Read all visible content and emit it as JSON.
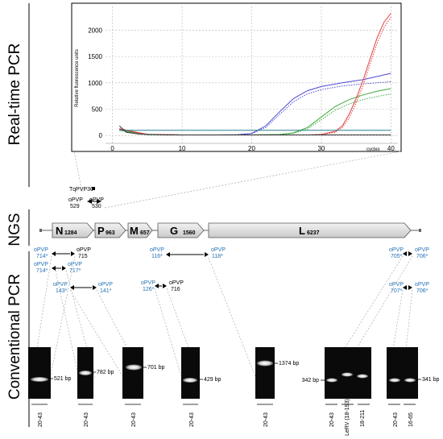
{
  "sections": {
    "realtime": "Real-time PCR",
    "ngs": "NGS",
    "conventional": "Conventional PCR"
  },
  "chart_data": {
    "type": "line",
    "ylabel": "Relative fluorescence units",
    "xlabel": "cycles",
    "x_ticks": [
      0,
      10,
      20,
      30,
      40
    ],
    "y_ticks": [
      0,
      500,
      1000,
      1500,
      2000
    ],
    "xlim": [
      -1,
      41
    ],
    "ylim": [
      -150,
      2450
    ],
    "grid": true,
    "series": [
      {
        "color": "#4a4ad0",
        "style": "solid",
        "x": [
          1,
          5,
          10,
          15,
          18,
          20,
          22,
          24,
          26,
          28,
          30,
          33,
          36,
          40
        ],
        "values": [
          120,
          20,
          10,
          10,
          15,
          40,
          180,
          450,
          700,
          850,
          930,
          1000,
          1060,
          1180
        ]
      },
      {
        "color": "#4a4ad0",
        "style": "dotted",
        "x": [
          1,
          5,
          10,
          15,
          18,
          20,
          22,
          24,
          26,
          28,
          30,
          33,
          36,
          40
        ],
        "values": [
          110,
          25,
          10,
          10,
          15,
          35,
          150,
          400,
          640,
          790,
          870,
          940,
          980,
          1020
        ]
      },
      {
        "color": "#3faa3f",
        "style": "solid",
        "x": [
          1,
          5,
          10,
          15,
          20,
          24,
          26,
          28,
          30,
          32,
          34,
          36,
          38,
          40
        ],
        "values": [
          100,
          15,
          10,
          10,
          10,
          20,
          50,
          150,
          350,
          550,
          680,
          770,
          840,
          890
        ]
      },
      {
        "color": "#3faa3f",
        "style": "dotted",
        "x": [
          1,
          5,
          10,
          15,
          20,
          24,
          26,
          28,
          30,
          32,
          34,
          36,
          38,
          40
        ],
        "values": [
          100,
          15,
          10,
          10,
          10,
          15,
          40,
          120,
          300,
          480,
          600,
          680,
          740,
          790
        ]
      },
      {
        "color": "#e04040",
        "style": "solid",
        "x": [
          1,
          5,
          10,
          20,
          28,
          30,
          32,
          33,
          34,
          35,
          36,
          37,
          38,
          39,
          40
        ],
        "values": [
          130,
          20,
          10,
          10,
          10,
          20,
          80,
          180,
          400,
          700,
          1050,
          1450,
          1850,
          2150,
          2320
        ]
      },
      {
        "color": "#e04040",
        "style": "dotted",
        "x": [
          1,
          5,
          10,
          20,
          28,
          30,
          32,
          33,
          34,
          35,
          36,
          37,
          38,
          39,
          40
        ],
        "values": [
          120,
          20,
          10,
          10,
          10,
          15,
          60,
          150,
          330,
          620,
          950,
          1350,
          1750,
          2050,
          2250
        ]
      },
      {
        "color": "#2a7f8f",
        "style": "solid",
        "x": [
          1,
          40
        ],
        "values": [
          100,
          100
        ]
      },
      {
        "color": "#333333",
        "style": "solid",
        "x": [
          1,
          2,
          4,
          8,
          40
        ],
        "values": [
          180,
          60,
          25,
          10,
          10
        ]
      }
    ]
  },
  "ngs": {
    "qpcr_probe": "TqPVP30",
    "qpcr_primer_left": {
      "name": "oPVP",
      "num": "529"
    },
    "qpcr_primer_right": {
      "name": "oPVP",
      "num": "530"
    },
    "genes": [
      {
        "letter": "N",
        "size": "1284"
      },
      {
        "letter": "P",
        "size": "963"
      },
      {
        "letter": "M",
        "size": "657"
      },
      {
        "letter": "G",
        "size": "1560"
      },
      {
        "letter": "L",
        "size": "6237"
      }
    ]
  },
  "primers": [
    {
      "l1": "oPVP",
      "l2": "714*",
      "r1": "oPVP",
      "r2": "715",
      "lc": "b",
      "rc": "k"
    },
    {
      "l1": "oPVP",
      "l2": "714*",
      "r1": "oPVP",
      "r2": "717*",
      "lc": "b",
      "rc": "b"
    },
    {
      "l1": "oPVP",
      "l2": "143*",
      "r1": "oPVP",
      "r2": "141*",
      "lc": "b",
      "rc": "b"
    },
    {
      "l1": "oPVP",
      "l2": "116*",
      "r1": "oPVP",
      "r2": "118*",
      "lc": "b",
      "rc": "b"
    },
    {
      "l1": "oPVP",
      "l2": "126*",
      "r1": "oPVP",
      "r2": "716",
      "lc": "b",
      "rc": "k"
    },
    {
      "l1": "oPVP",
      "l2": "705*",
      "r1": "oPVP",
      "r2": "706*",
      "lc": "b",
      "rc": "b"
    },
    {
      "l1": "oPVP",
      "l2": "707*",
      "r1": "oPVP",
      "r2": "706*",
      "lc": "b",
      "rc": "b"
    }
  ],
  "gels": [
    {
      "bp": "521 bp",
      "lanes": [
        "20-43"
      ]
    },
    {
      "bp": "782 bp",
      "lanes": [
        "20-43"
      ]
    },
    {
      "bp": "701 bp",
      "lanes": [
        "20-43"
      ]
    },
    {
      "bp": "429 bp",
      "lanes": [
        "20-43"
      ]
    },
    {
      "bp": "1374 bp",
      "lanes": [
        "20-43"
      ]
    },
    {
      "bp": "342 bp",
      "lanes": [
        "20-43",
        "LeRV (18-193)",
        "18-211"
      ]
    },
    {
      "bp": "341 bp",
      "lanes": [
        "20-43",
        "16-65"
      ]
    }
  ]
}
